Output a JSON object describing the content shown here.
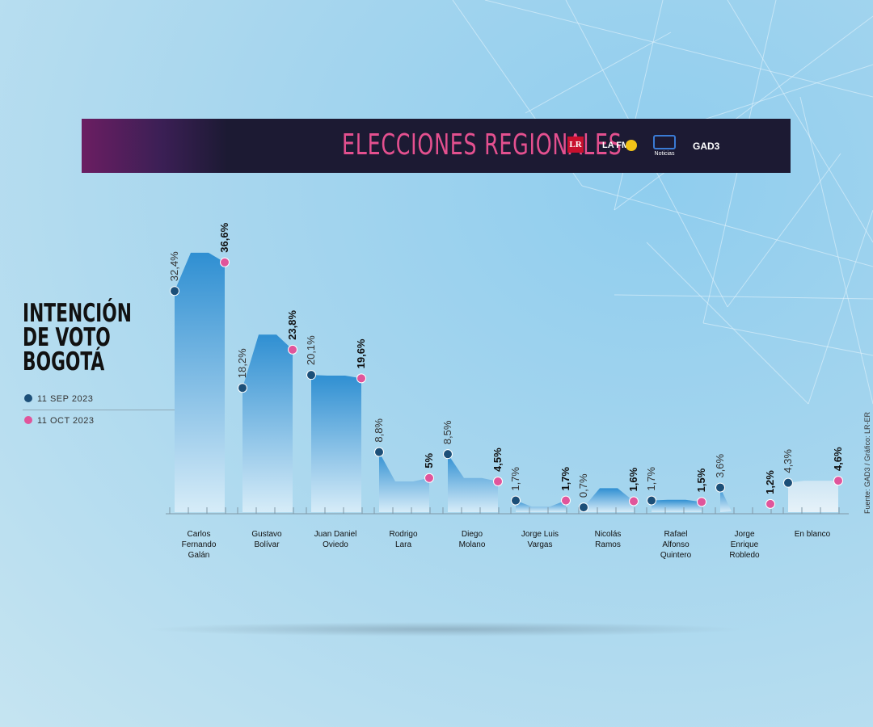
{
  "banner": {
    "title": "ELECCIONES REGIONALES",
    "logos": [
      "LR",
      "LA FM",
      "Noticias",
      "GAD3"
    ]
  },
  "title": "INTENCIÓN DE VOTO BOGOTÁ",
  "legend": [
    {
      "label": "11 SEP 2023",
      "color": "#1c4f78"
    },
    {
      "label": "11 OCT 2023",
      "color": "#e0559b"
    }
  ],
  "source": "Fuente: GAD3 / Gráfico: LR-ER",
  "chart_data": {
    "type": "area",
    "title": "INTENCIÓN DE VOTO BOGOTÁ",
    "categories": [
      "Carlos Fernando Galán",
      "Gustavo Bolívar",
      "Juan Daniel Oviedo",
      "Rodrigo Lara",
      "Diego Molano",
      "Jorge Luis Vargas",
      "Nicolás Ramos",
      "Rafael Alfonso Quintero",
      "Jorge Enrique Robledo",
      "En blanco"
    ],
    "category_lines": [
      [
        "Carlos",
        "Fernando",
        "Galán"
      ],
      [
        "Gustavo",
        "Bolívar"
      ],
      [
        "Juan Daniel",
        "Oviedo"
      ],
      [
        "Rodrigo",
        "Lara"
      ],
      [
        "Diego",
        "Molano"
      ],
      [
        "Jorge Luis",
        "Vargas"
      ],
      [
        "Nicolás",
        "Ramos"
      ],
      [
        "Rafael",
        "Alfonso",
        "Quintero"
      ],
      [
        "Jorge",
        "Enrique",
        "Robledo"
      ],
      [
        "En blanco"
      ]
    ],
    "series": [
      {
        "name": "11 SEP 2023",
        "color": "#1c4f78",
        "values": [
          32.4,
          18.2,
          20.1,
          8.8,
          8.5,
          1.7,
          0.7,
          1.7,
          3.6,
          4.3
        ],
        "labels": [
          "32,4%",
          "18,2%",
          "20,1%",
          "8,8%",
          "8,5%",
          "1,7%",
          "0,7%",
          "1,7%",
          "3,6%",
          "4,3%"
        ]
      },
      {
        "name": "11 OCT 2023",
        "color": "#e0559b",
        "values": [
          36.6,
          23.8,
          19.6,
          5,
          4.5,
          1.7,
          1.6,
          1.5,
          1.2,
          4.6
        ],
        "labels": [
          "36,6%",
          "23,8%",
          "19,6%",
          "5%",
          "4,5%",
          "1,7%",
          "1,6%",
          "1,5%",
          "1,2%",
          "4,6%"
        ]
      }
    ],
    "intermediate_peaks": [
      38,
      26,
      20,
      4.5,
      5,
      0.8,
      3.5,
      1.8,
      null,
      4.6
    ],
    "ylim": [
      0,
      40
    ],
    "area_color": "#3c9ad8"
  }
}
